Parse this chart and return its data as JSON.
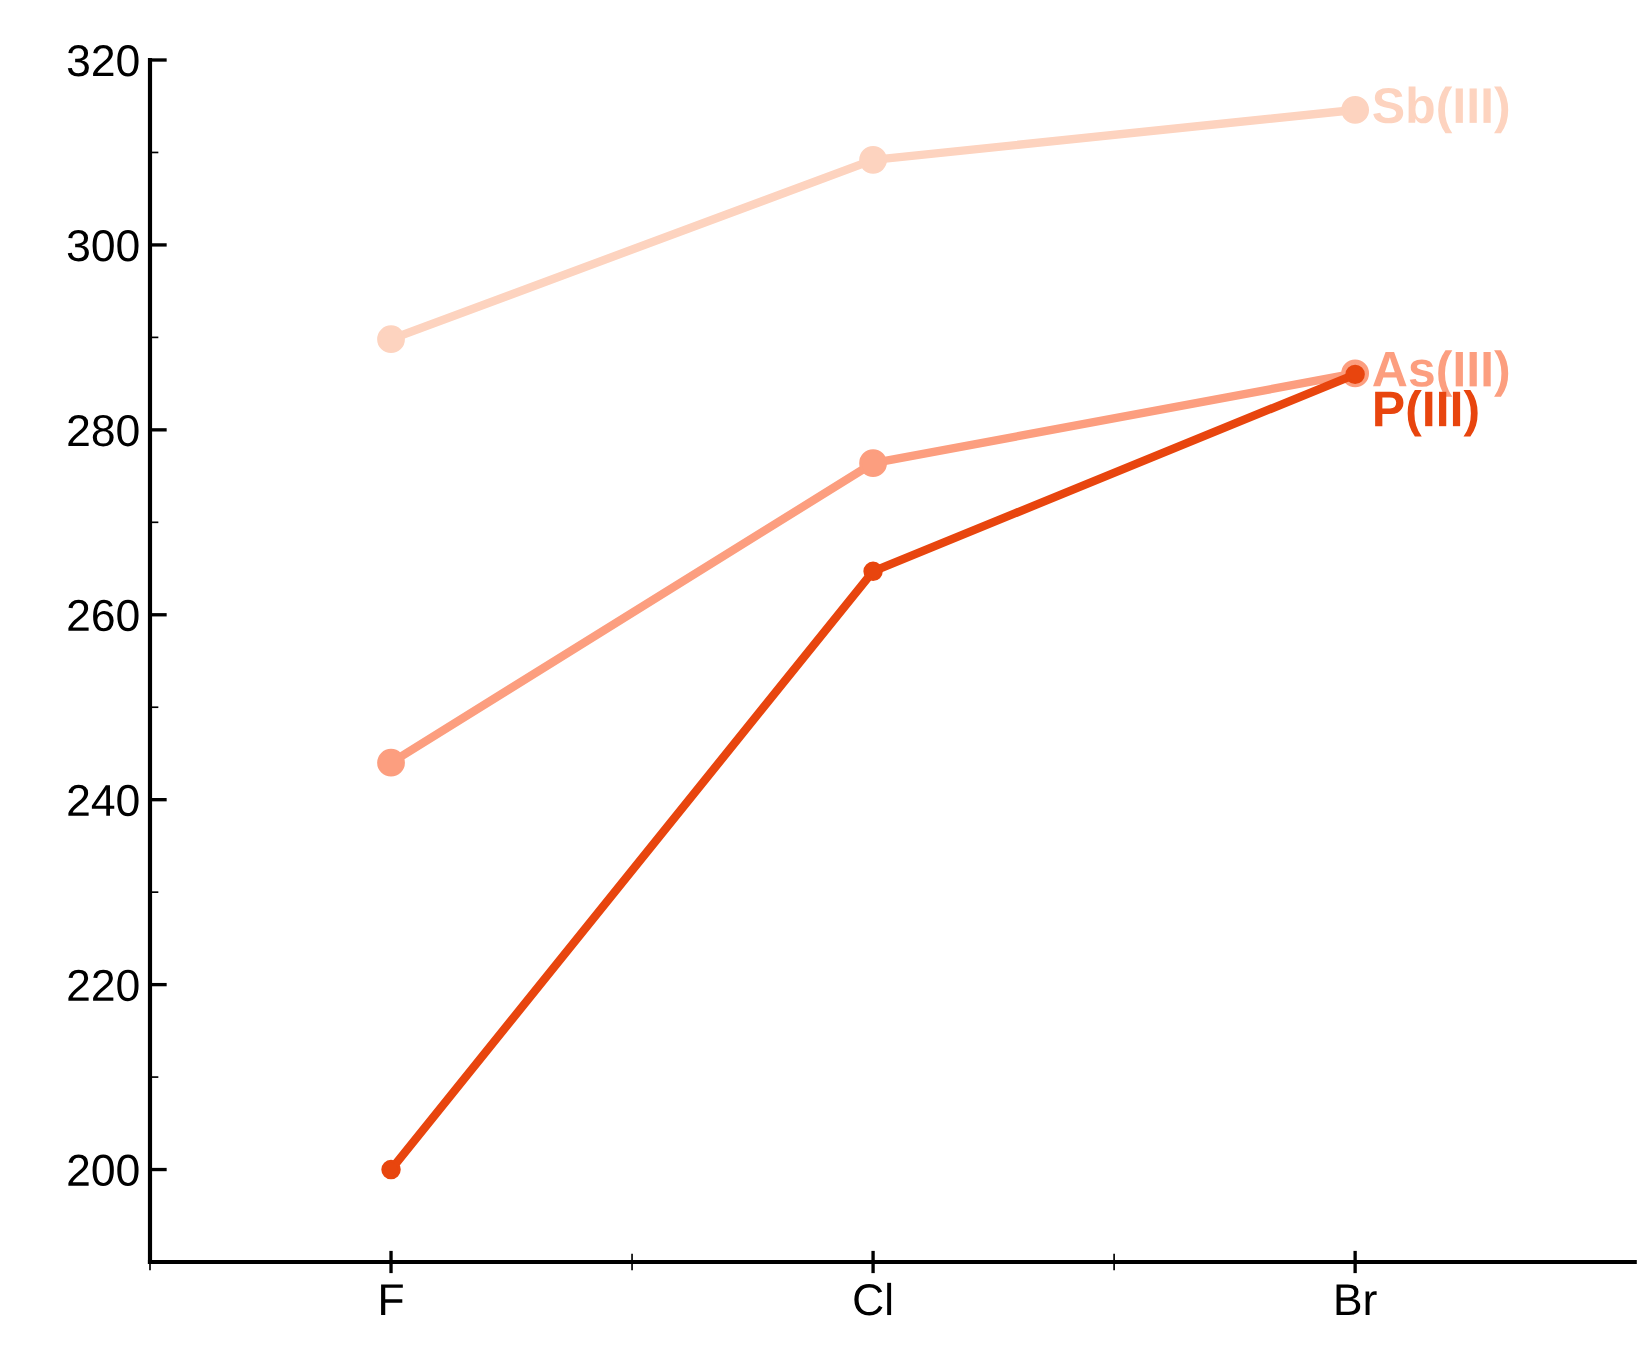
{
  "chart_data": {
    "type": "line",
    "categories": [
      "F",
      "Cl",
      "Br"
    ],
    "series": [
      {
        "name": "Sb(III)",
        "color": "#fdd3bf",
        "values": [
          289.8,
          309.2,
          314.6
        ]
      },
      {
        "name": "As(III)",
        "color": "#fc9e7f",
        "values": [
          244.0,
          276.4,
          286.1
        ]
      },
      {
        "name": "P(III)",
        "color": "#e8450e",
        "values": [
          200.0,
          264.7,
          286.0
        ]
      }
    ],
    "ylim": [
      190,
      320
    ],
    "yticks": [
      200,
      220,
      240,
      260,
      280,
      300,
      320
    ],
    "grid": false,
    "legend": false,
    "marker": "circle",
    "line_style": "solid"
  }
}
